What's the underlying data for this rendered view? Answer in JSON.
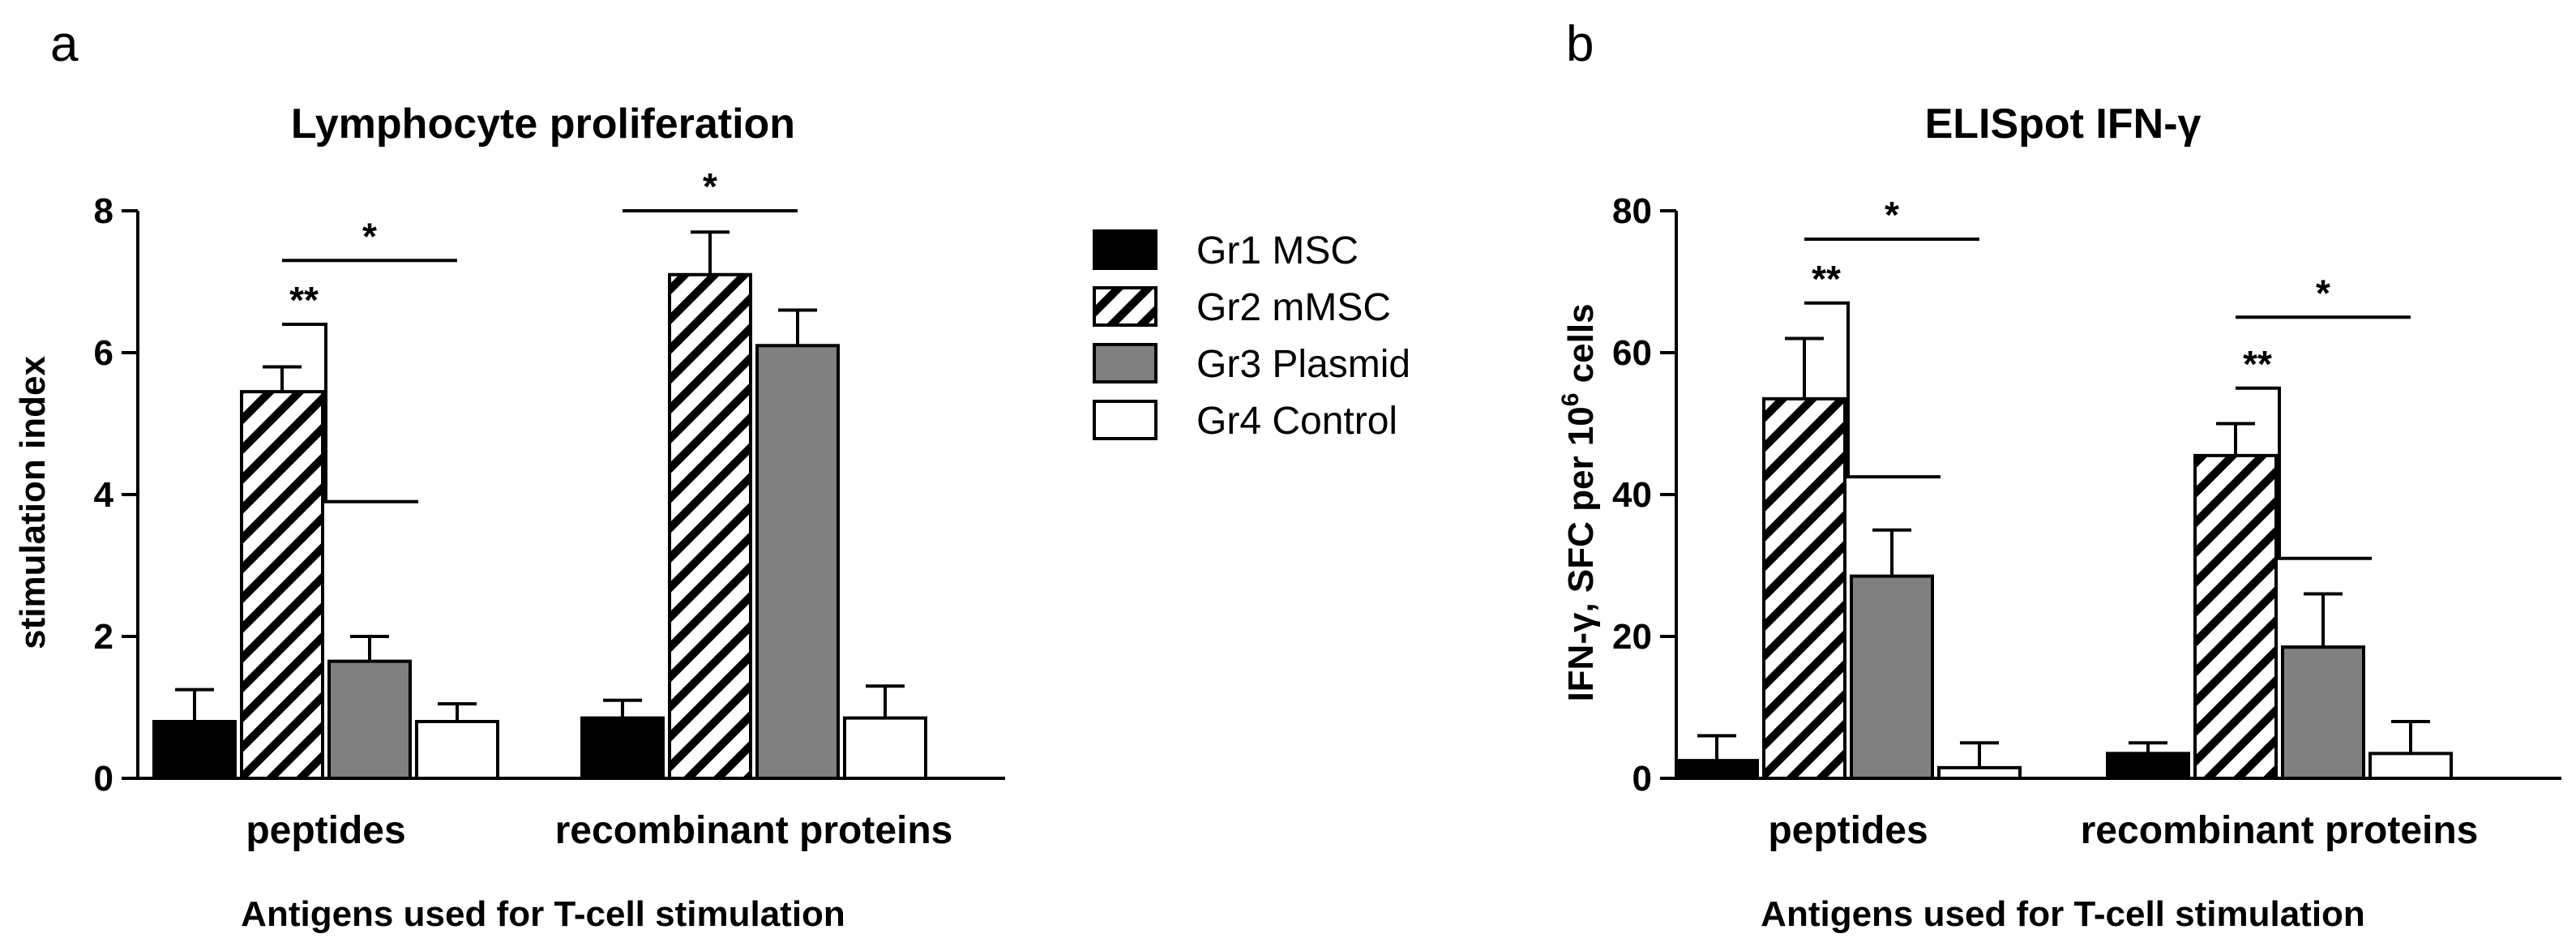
{
  "legend": [
    {
      "name": "Gr1 MSC",
      "fill": "black"
    },
    {
      "name": "Gr2 mMSC",
      "fill": "hatch"
    },
    {
      "name": "Gr3 Plasmid",
      "fill": "gray"
    },
    {
      "name": "Gr4 Control",
      "fill": "white"
    }
  ],
  "colors": {
    "black": "#000000",
    "gray": "#808080",
    "white": "#ffffff",
    "hatch_bg": "#ffffff",
    "hatch_line": "#000000",
    "axis": "#000000"
  },
  "chart_data": [
    {
      "id": "a",
      "panel": "a",
      "type": "bar",
      "title": "Lymphocyte proliferation",
      "ylabel": "stimulation index",
      "xlabel": "Antigens used for T-cell stimulation",
      "ylim": [
        0,
        8
      ],
      "yticks": [
        0,
        2,
        4,
        6,
        8
      ],
      "categories": [
        "peptides",
        "recombinant proteins"
      ],
      "series": [
        {
          "name": "Gr1 MSC",
          "values": [
            0.8,
            0.85
          ],
          "errors": [
            0.45,
            0.25
          ]
        },
        {
          "name": "Gr2 mMSC",
          "values": [
            5.45,
            7.1
          ],
          "errors": [
            0.35,
            0.6
          ]
        },
        {
          "name": "Gr3 Plasmid",
          "values": [
            1.65,
            6.1
          ],
          "errors": [
            0.35,
            0.5
          ]
        },
        {
          "name": "Gr4 Control",
          "values": [
            0.8,
            0.85
          ],
          "errors": [
            0.25,
            0.45
          ]
        }
      ],
      "significance": [
        {
          "label": "*",
          "type": "line",
          "category": 0,
          "from": 1,
          "to": 3,
          "y": 7.3
        },
        {
          "label": "**",
          "type": "step",
          "category": 0,
          "from": 1,
          "to": 2,
          "y": 6.4,
          "y2": 3.9
        },
        {
          "label": "*",
          "type": "line",
          "category": 1,
          "from": 0,
          "to": 2,
          "y": 8.0
        }
      ]
    },
    {
      "id": "b",
      "panel": "b",
      "type": "bar",
      "title": "ELISpot IFN-γ",
      "ylabel_main": "IFN-γ,  SFC per 10",
      "ylabel_sup": "6",
      "ylabel_end": " cells",
      "xlabel": "Antigens used for T-cell stimulation",
      "ylim": [
        0,
        80
      ],
      "yticks": [
        0,
        20,
        40,
        60,
        80
      ],
      "categories": [
        "peptides",
        "recombinant proteins"
      ],
      "series": [
        {
          "name": "Gr1 MSC",
          "values": [
            2.5,
            3.5
          ],
          "errors": [
            3.5,
            1.5
          ]
        },
        {
          "name": "Gr2 mMSC",
          "values": [
            53.5,
            45.5
          ],
          "errors": [
            8.5,
            4.5
          ]
        },
        {
          "name": "Gr3 Plasmid",
          "values": [
            28.5,
            18.5
          ],
          "errors": [
            6.5,
            7.5
          ]
        },
        {
          "name": "Gr4 Control",
          "values": [
            1.5,
            3.5
          ],
          "errors": [
            3.5,
            4.5
          ]
        }
      ],
      "significance": [
        {
          "label": "*",
          "type": "line",
          "category": 0,
          "from": 1,
          "to": 3,
          "y": 76
        },
        {
          "label": "**",
          "type": "step",
          "category": 0,
          "from": 1,
          "to": 2,
          "y": 67,
          "y2": 42.5
        },
        {
          "label": "*",
          "type": "line",
          "category": 1,
          "from": 1,
          "to": 3,
          "y": 65
        },
        {
          "label": "**",
          "type": "step",
          "category": 1,
          "from": 1,
          "to": 2,
          "y": 55,
          "y2": 31
        }
      ]
    }
  ]
}
